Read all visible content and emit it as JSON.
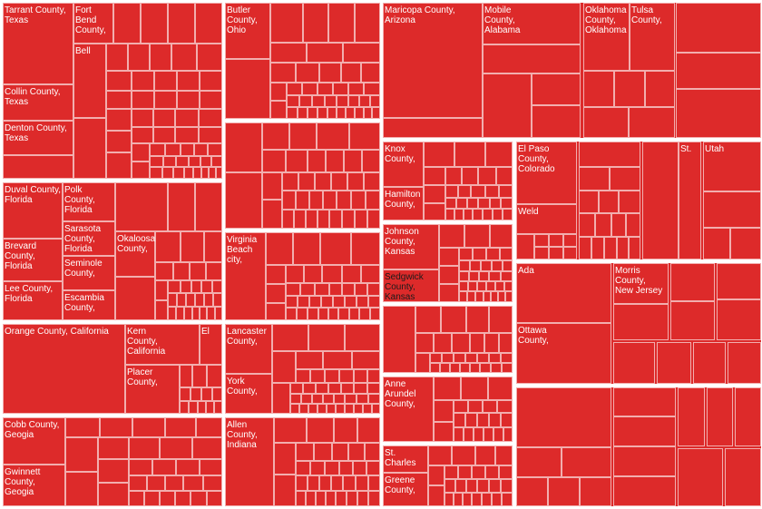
{
  "chart_data": {
    "type": "treemap",
    "colors": {
      "fill": "#dd2a2a",
      "border": "#ffffff",
      "label": "#ffffff",
      "label_highlight": "#1b1b1b"
    },
    "labels": [
      {
        "id": "tarrant",
        "text": "Tarrant County,\nTexas"
      },
      {
        "id": "fortbend",
        "text": "Fort\nBend\nCounty,"
      },
      {
        "id": "bell",
        "text": "Bell"
      },
      {
        "id": "collin",
        "text": "Collin County,\nTexas"
      },
      {
        "id": "denton",
        "text": "Denton County,\nTexas"
      },
      {
        "id": "duval",
        "text": "Duval County,\nFlorida"
      },
      {
        "id": "polk",
        "text": "Polk\nCounty,\nFlorida"
      },
      {
        "id": "sarasota",
        "text": "Sarasota\nCounty,\nFlorida"
      },
      {
        "id": "okaloosa",
        "text": "Okaloosa\nCounty,"
      },
      {
        "id": "brevard",
        "text": "Brevard\nCounty,\nFlorida"
      },
      {
        "id": "seminole",
        "text": "Seminole\nCounty,"
      },
      {
        "id": "lee",
        "text": "Lee County,\nFlorida"
      },
      {
        "id": "escambia",
        "text": "Escambia\nCounty,"
      },
      {
        "id": "orange",
        "text": "Orange County, California"
      },
      {
        "id": "kern",
        "text": "Kern\nCounty,\nCalifornia"
      },
      {
        "id": "el",
        "text": "El"
      },
      {
        "id": "placer",
        "text": "Placer\nCounty,"
      },
      {
        "id": "cobb",
        "text": "Cobb County,\nGeogia"
      },
      {
        "id": "gwinnett",
        "text": "Gwinnett\nCounty,\nGeogia"
      },
      {
        "id": "butler",
        "text": "Butler\nCounty,\nOhio"
      },
      {
        "id": "virginiabeach",
        "text": "Virginia\nBeach\ncity,"
      },
      {
        "id": "lancaster",
        "text": "Lancaster\nCounty,"
      },
      {
        "id": "york",
        "text": "York\nCounty,"
      },
      {
        "id": "allen",
        "text": "Allen\nCounty,\nIndiana"
      },
      {
        "id": "maricopa",
        "text": "Maricopa County,\nArizona"
      },
      {
        "id": "mobile",
        "text": "Mobile\nCounty,\nAlabama"
      },
      {
        "id": "oklahoma",
        "text": "Oklahoma\nCounty,\nOklahoma"
      },
      {
        "id": "tulsa",
        "text": "Tulsa\nCounty,"
      },
      {
        "id": "knox",
        "text": "Knox\nCounty,"
      },
      {
        "id": "hamilton",
        "text": "Hamilton\nCounty,"
      },
      {
        "id": "elpaso",
        "text": "El Paso\nCounty,\nColorado"
      },
      {
        "id": "st1",
        "text": "St."
      },
      {
        "id": "utah",
        "text": "Utah"
      },
      {
        "id": "weld",
        "text": "Weld"
      },
      {
        "id": "johnson",
        "text": "Johnson\nCounty,\nKansas"
      },
      {
        "id": "sedgwick",
        "text": "Sedgwick\nCounty,\nKansas",
        "highlight": true
      },
      {
        "id": "ada",
        "text": "Ada"
      },
      {
        "id": "morris",
        "text": "Morris\nCounty,\nNew Jersey"
      },
      {
        "id": "ottawa",
        "text": "Ottawa\nCounty,"
      },
      {
        "id": "annearundel",
        "text": "Anne\nArundel\nCounty,"
      },
      {
        "id": "stcharles",
        "text": "St.\nCharles"
      },
      {
        "id": "greene",
        "text": "Greene\nCounty,"
      }
    ]
  }
}
